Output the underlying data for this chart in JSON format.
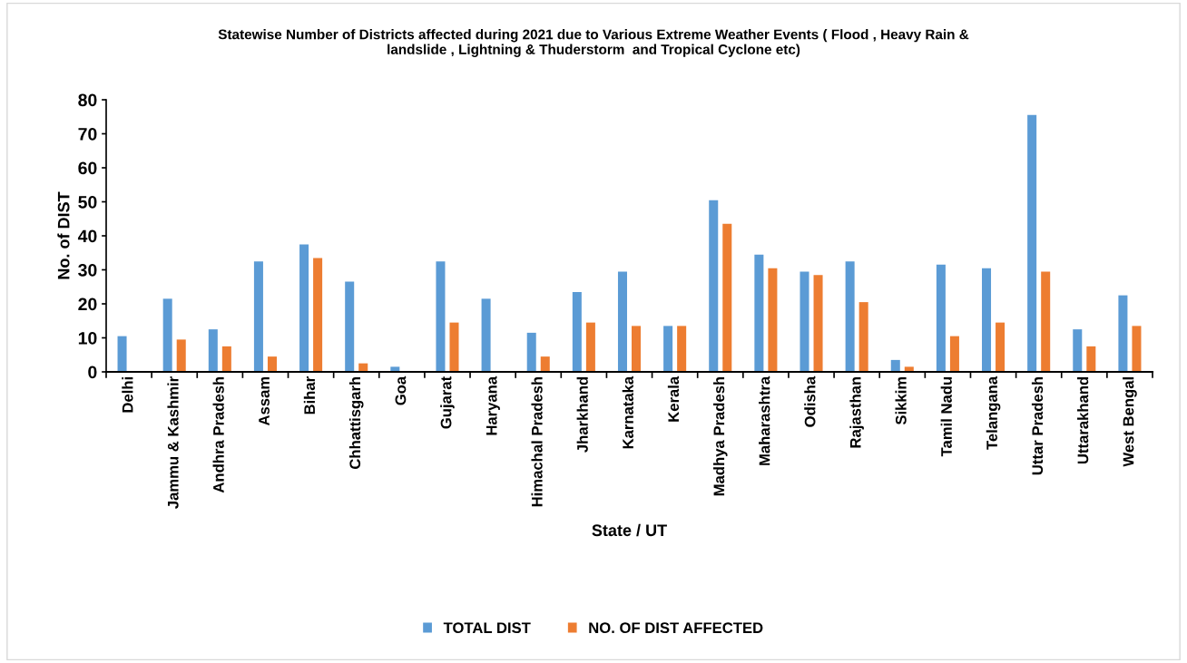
{
  "chart_data": {
    "type": "bar",
    "title": "Statewise Number of Districts affected during 2021 due to Various Extreme Weather Events ( Flood , Heavy Rain &\nlandslide , Lightning & Thuderstorm  and Tropical Cyclone etc)",
    "xlabel": "State / UT",
    "ylabel": "No. of DIST",
    "categories": [
      "Delhi",
      "Jammu & Kashmir",
      "Andhra Pradesh",
      "Assam",
      "Bihar",
      "Chhattisgarh",
      "Goa",
      "Gujarat",
      "Haryana",
      "Himachal Pradesh",
      "Jharkhand",
      "Karnataka",
      "Kerala",
      "Madhya Pradesh",
      "Maharashtra",
      "Odisha",
      "Rajasthan",
      "Sikkim",
      "Tamil Nadu",
      "Telangana",
      "Uttar Pradesh",
      "Uttarakhand",
      "West Bengal"
    ],
    "series": [
      {
        "name": "TOTAL DIST",
        "color": "#5b9bd5",
        "values": [
          10.5,
          21.5,
          12.5,
          32.5,
          37.5,
          26.5,
          1.5,
          32.5,
          21.5,
          11.5,
          23.5,
          29.5,
          13.5,
          50.5,
          34.5,
          29.5,
          32.5,
          3.5,
          31.5,
          30.5,
          75.5,
          12.5,
          22.5
        ]
      },
      {
        "name": "NO. OF DIST AFFECTED",
        "color": "#ed7d31",
        "values": [
          0,
          9.5,
          7.5,
          4.5,
          33.5,
          2.5,
          0,
          14.5,
          0,
          4.5,
          14.5,
          13.5,
          13.5,
          43.5,
          30.5,
          28.5,
          20.5,
          1.5,
          10.5,
          14.5,
          29.5,
          7.5,
          13.5
        ]
      }
    ],
    "ylim": [
      0,
      80
    ],
    "yticks": [
      0,
      10,
      20,
      30,
      40,
      50,
      60,
      70,
      80
    ],
    "grid": false,
    "legend": "bottom"
  }
}
